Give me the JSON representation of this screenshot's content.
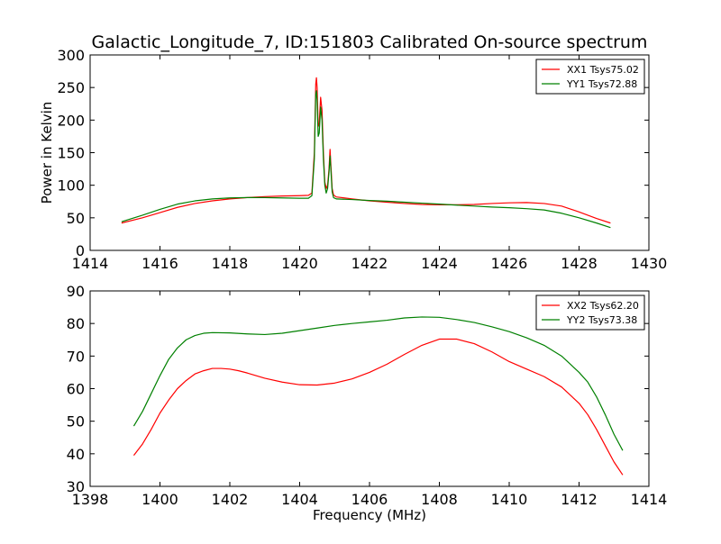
{
  "figure": {
    "title": "Galactic_Longitude_7, ID:151803 Calibrated On-source spectrum"
  },
  "chart_data": [
    {
      "type": "line",
      "ylabel": "Power in Kelvin",
      "xlabel": "",
      "xlim": [
        1414,
        1430
      ],
      "ylim": [
        0,
        300
      ],
      "xticks": [
        "1414",
        "1416",
        "1418",
        "1420",
        "1422",
        "1424",
        "1426",
        "1428",
        "1430"
      ],
      "yticks": [
        "0",
        "50",
        "100",
        "150",
        "200",
        "250",
        "300"
      ],
      "xtick_values": [
        1414,
        1416,
        1418,
        1420,
        1422,
        1424,
        1426,
        1428,
        1430
      ],
      "ytick_values": [
        0,
        50,
        100,
        150,
        200,
        250,
        300
      ],
      "legend_position": "top-right",
      "series": [
        {
          "name": "XX1 Tsys75.02",
          "color": "#ff0000",
          "points": [
            [
              1414.9,
              42
            ],
            [
              1415.5,
              50
            ],
            [
              1416,
              58
            ],
            [
              1416.5,
              66
            ],
            [
              1417,
              72
            ],
            [
              1417.5,
              76
            ],
            [
              1418,
              79
            ],
            [
              1418.5,
              81
            ],
            [
              1419,
              82.5
            ],
            [
              1419.5,
              83.5
            ],
            [
              1420,
              84
            ],
            [
              1420.25,
              84.5
            ],
            [
              1420.35,
              88
            ],
            [
              1420.42,
              150
            ],
            [
              1420.46,
              255
            ],
            [
              1420.48,
              265
            ],
            [
              1420.5,
              250
            ],
            [
              1420.53,
              190
            ],
            [
              1420.56,
              195
            ],
            [
              1420.6,
              235
            ],
            [
              1420.64,
              215
            ],
            [
              1420.68,
              150
            ],
            [
              1420.72,
              105
            ],
            [
              1420.76,
              95
            ],
            [
              1420.8,
              100
            ],
            [
              1420.84,
              125
            ],
            [
              1420.87,
              155
            ],
            [
              1420.9,
              125
            ],
            [
              1420.93,
              95
            ],
            [
              1420.97,
              85
            ],
            [
              1421.05,
              82
            ],
            [
              1421.5,
              79
            ],
            [
              1422,
              76
            ],
            [
              1422.5,
              74
            ],
            [
              1423,
              72
            ],
            [
              1423.5,
              70.5
            ],
            [
              1424,
              70
            ],
            [
              1424.5,
              70
            ],
            [
              1425,
              70.5
            ],
            [
              1425.5,
              72
            ],
            [
              1426,
              73
            ],
            [
              1426.5,
              73.5
            ],
            [
              1427,
              72
            ],
            [
              1427.5,
              68
            ],
            [
              1428,
              59
            ],
            [
              1428.5,
              49
            ],
            [
              1428.9,
              42
            ]
          ]
        },
        {
          "name": "YY1 Tsys72.88",
          "color": "#008000",
          "points": [
            [
              1414.9,
              44
            ],
            [
              1415.5,
              54
            ],
            [
              1416,
              63
            ],
            [
              1416.5,
              71
            ],
            [
              1417,
              76
            ],
            [
              1417.5,
              79
            ],
            [
              1418,
              80.5
            ],
            [
              1418.5,
              81
            ],
            [
              1419,
              81
            ],
            [
              1419.5,
              80.5
            ],
            [
              1420,
              80
            ],
            [
              1420.25,
              80
            ],
            [
              1420.35,
              84
            ],
            [
              1420.42,
              140
            ],
            [
              1420.46,
              240
            ],
            [
              1420.48,
              245
            ],
            [
              1420.5,
              230
            ],
            [
              1420.53,
              175
            ],
            [
              1420.56,
              180
            ],
            [
              1420.6,
              220
            ],
            [
              1420.64,
              200
            ],
            [
              1420.68,
              140
            ],
            [
              1420.72,
              100
            ],
            [
              1420.76,
              88
            ],
            [
              1420.8,
              95
            ],
            [
              1420.84,
              120
            ],
            [
              1420.87,
              145
            ],
            [
              1420.9,
              118
            ],
            [
              1420.93,
              90
            ],
            [
              1420.97,
              81
            ],
            [
              1421.05,
              79
            ],
            [
              1421.5,
              78
            ],
            [
              1422,
              76.5
            ],
            [
              1422.5,
              75.5
            ],
            [
              1423,
              74
            ],
            [
              1423.5,
              72.5
            ],
            [
              1424,
              71
            ],
            [
              1424.5,
              69.5
            ],
            [
              1425,
              68
            ],
            [
              1425.5,
              66.5
            ],
            [
              1426,
              65.5
            ],
            [
              1426.5,
              64
            ],
            [
              1427,
              62
            ],
            [
              1427.5,
              57
            ],
            [
              1428,
              50
            ],
            [
              1428.5,
              42
            ],
            [
              1428.9,
              35
            ]
          ]
        }
      ]
    },
    {
      "type": "line",
      "ylabel": "",
      "xlabel": "Frequency (MHz)",
      "xlim": [
        1398,
        1414
      ],
      "ylim": [
        30,
        90
      ],
      "xticks": [
        "1398",
        "1400",
        "1402",
        "1404",
        "1406",
        "1408",
        "1410",
        "1412",
        "1414"
      ],
      "yticks": [
        "30",
        "40",
        "50",
        "60",
        "70",
        "80",
        "90"
      ],
      "xtick_values": [
        1398,
        1400,
        1402,
        1404,
        1406,
        1408,
        1410,
        1412,
        1414
      ],
      "ytick_values": [
        30,
        40,
        50,
        60,
        70,
        80,
        90
      ],
      "legend_position": "top-right",
      "series": [
        {
          "name": "XX2 Tsys62.20",
          "color": "#ff0000",
          "points": [
            [
              1399.25,
              39.5
            ],
            [
              1399.5,
              43
            ],
            [
              1399.75,
              47.5
            ],
            [
              1400,
              52.5
            ],
            [
              1400.25,
              56.5
            ],
            [
              1400.5,
              60
            ],
            [
              1400.75,
              62.5
            ],
            [
              1401,
              64.5
            ],
            [
              1401.25,
              65.5
            ],
            [
              1401.5,
              66.2
            ],
            [
              1401.75,
              66.2
            ],
            [
              1402,
              66
            ],
            [
              1402.25,
              65.5
            ],
            [
              1402.5,
              64.8
            ],
            [
              1402.75,
              64
            ],
            [
              1403,
              63.2
            ],
            [
              1403.5,
              62
            ],
            [
              1404,
              61.2
            ],
            [
              1404.5,
              61.1
            ],
            [
              1405,
              61.7
            ],
            [
              1405.5,
              63
            ],
            [
              1406,
              65
            ],
            [
              1406.5,
              67.5
            ],
            [
              1407,
              70.5
            ],
            [
              1407.5,
              73.3
            ],
            [
              1408,
              75.2
            ],
            [
              1408.5,
              75.2
            ],
            [
              1409,
              73.8
            ],
            [
              1409.5,
              71.3
            ],
            [
              1410,
              68.3
            ],
            [
              1410.5,
              66
            ],
            [
              1411,
              63.7
            ],
            [
              1411.5,
              60.5
            ],
            [
              1412,
              55.5
            ],
            [
              1412.25,
              52
            ],
            [
              1412.5,
              47.5
            ],
            [
              1412.75,
              42.5
            ],
            [
              1413,
              37.5
            ],
            [
              1413.25,
              33.5
            ]
          ]
        },
        {
          "name": "YY2 Tsys73.38",
          "color": "#008000",
          "points": [
            [
              1399.25,
              48.5
            ],
            [
              1399.5,
              53
            ],
            [
              1399.75,
              58.5
            ],
            [
              1400,
              64
            ],
            [
              1400.25,
              69
            ],
            [
              1400.5,
              72.5
            ],
            [
              1400.75,
              75
            ],
            [
              1401,
              76.3
            ],
            [
              1401.25,
              77
            ],
            [
              1401.5,
              77.2
            ],
            [
              1402,
              77.1
            ],
            [
              1402.5,
              76.8
            ],
            [
              1403,
              76.6
            ],
            [
              1403.5,
              77
            ],
            [
              1404,
              77.8
            ],
            [
              1404.5,
              78.6
            ],
            [
              1405,
              79.4
            ],
            [
              1405.5,
              80
            ],
            [
              1406,
              80.5
            ],
            [
              1406.5,
              81
            ],
            [
              1407,
              81.7
            ],
            [
              1407.5,
              82
            ],
            [
              1408,
              81.9
            ],
            [
              1408.5,
              81.2
            ],
            [
              1409,
              80.3
            ],
            [
              1409.5,
              79
            ],
            [
              1410,
              77.5
            ],
            [
              1410.5,
              75.6
            ],
            [
              1411,
              73.3
            ],
            [
              1411.5,
              70
            ],
            [
              1412,
              65
            ],
            [
              1412.25,
              62
            ],
            [
              1412.5,
              57.5
            ],
            [
              1412.75,
              52
            ],
            [
              1413,
              46
            ],
            [
              1413.25,
              41
            ]
          ]
        }
      ]
    }
  ]
}
